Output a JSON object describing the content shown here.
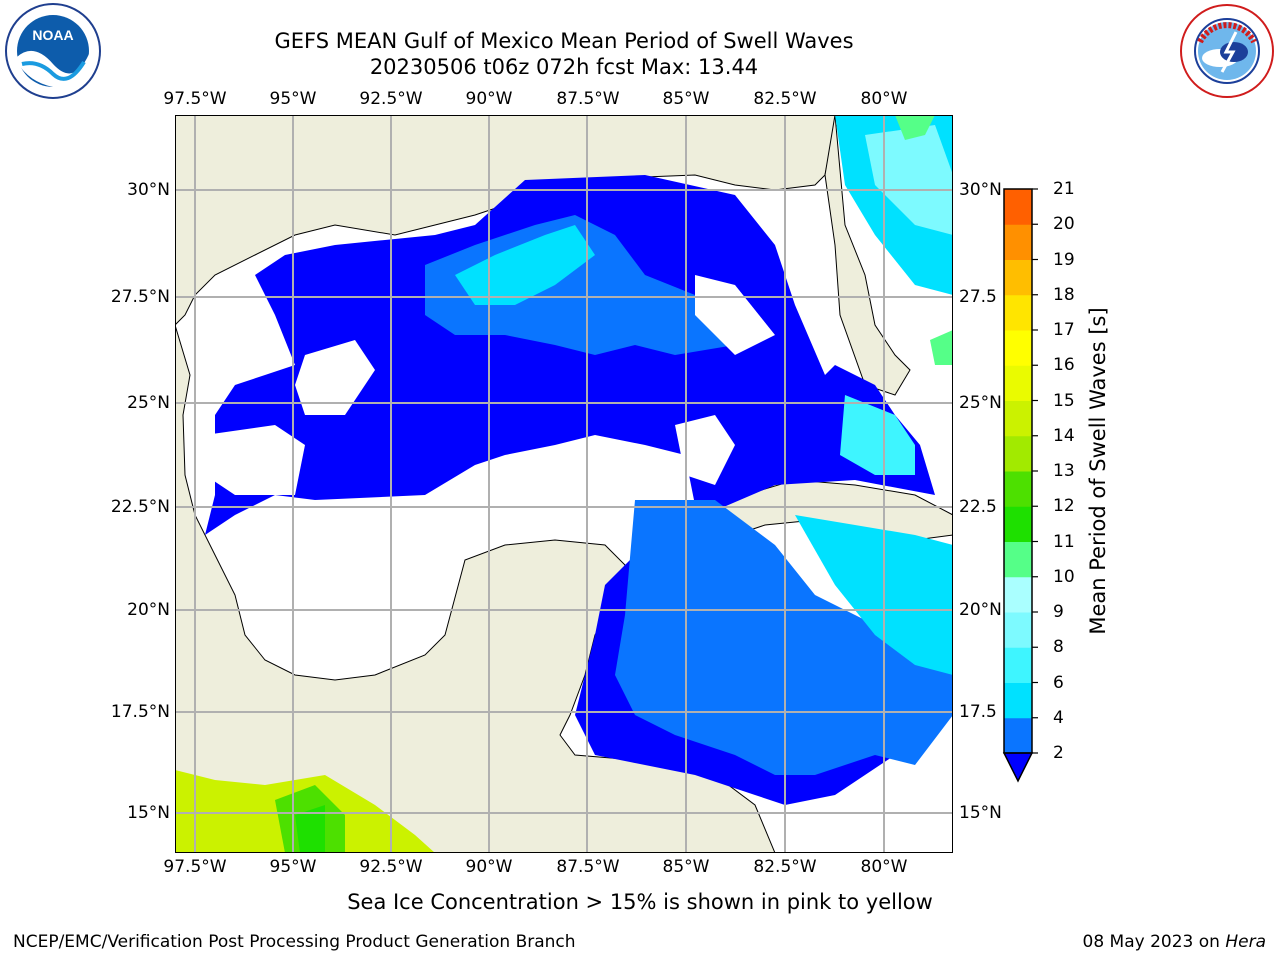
{
  "title": {
    "line1": "GEFS MEAN Gulf of Mexico Mean Period of Swell Waves",
    "line2": "20230506 t06z 072h fcst   Max: 13.44"
  },
  "map": {
    "lon_ticks": [
      "97.5°W",
      "95°W",
      "92.5°W",
      "90°W",
      "87.5°W",
      "85°W",
      "82.5°W",
      "80°W"
    ],
    "lat_ticks_left": [
      "30°N",
      "27.5°N",
      "25°N",
      "22.5°N",
      "20°N",
      "17.5°N",
      "15°N"
    ],
    "lat_ticks_right": [
      "30°N",
      "27.5",
      "25°N",
      "22.5",
      "20°N",
      "17.5",
      "15°N"
    ],
    "land_color": "#eeeedc",
    "grid_color": "#b0b0b0"
  },
  "colorbar": {
    "label": "Mean Period of Swell Waves [s]",
    "ticks": [
      "2",
      "4",
      "6",
      "8",
      "9",
      "10",
      "11",
      "12",
      "13",
      "14",
      "15",
      "16",
      "17",
      "18",
      "19",
      "20",
      "21"
    ],
    "colors": [
      "#0a75ff",
      "#00e1ff",
      "#3ef5ff",
      "#7dfaff",
      "#aaffff",
      "#55ff88",
      "#1ee000",
      "#4de000",
      "#a2ea00",
      "#cbf200",
      "#eafb00",
      "#ffff00",
      "#ffe500",
      "#ffbe00",
      "#ff9000",
      "#ff6000",
      "#ff3000",
      "#ff0000"
    ],
    "under_color": "#0000ff"
  },
  "logos": {
    "noaa": "NOAA",
    "nws": "NATIONAL WEATHER SERVICE"
  },
  "caption": "Sea Ice Concentration > 15% is shown in pink to yellow",
  "footer": {
    "left": "NCEP/EMC/Verification Post Processing Product Generation Branch",
    "right_prefix": "08 May 2023 on ",
    "right_host": "Hera"
  }
}
